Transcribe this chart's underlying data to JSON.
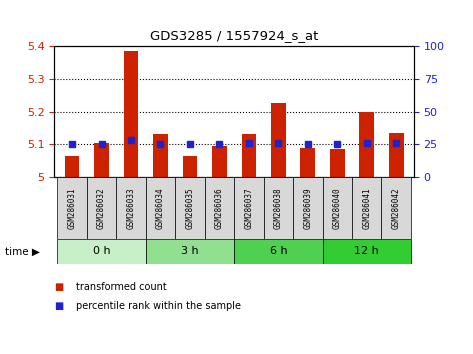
{
  "title": "GDS3285 / 1557924_s_at",
  "samples": [
    "GSM286031",
    "GSM286032",
    "GSM286033",
    "GSM286034",
    "GSM286035",
    "GSM286036",
    "GSM286037",
    "GSM286038",
    "GSM286039",
    "GSM286040",
    "GSM286041",
    "GSM286042"
  ],
  "transformed_count": [
    5.065,
    5.105,
    5.385,
    5.13,
    5.065,
    5.095,
    5.13,
    5.225,
    5.09,
    5.085,
    5.2,
    5.135
  ],
  "percentile_rank": [
    25,
    25,
    28,
    25,
    25,
    25,
    26,
    26,
    25,
    25,
    26,
    26
  ],
  "groups": [
    {
      "label": "0 h",
      "start": 0,
      "end": 3,
      "color": "#c8f0c8"
    },
    {
      "label": "3 h",
      "start": 3,
      "end": 6,
      "color": "#90e090"
    },
    {
      "label": "6 h",
      "start": 6,
      "end": 9,
      "color": "#50d050"
    },
    {
      "label": "12 h",
      "start": 9,
      "end": 12,
      "color": "#32cd32"
    }
  ],
  "ylim_left": [
    5.0,
    5.4
  ],
  "ylim_right": [
    0,
    100
  ],
  "yticks_left": [
    5.0,
    5.1,
    5.2,
    5.3,
    5.4
  ],
  "yticks_left_labels": [
    "5",
    "5.1",
    "5.2",
    "5.3",
    "5.4"
  ],
  "yticks_right": [
    0,
    25,
    50,
    75,
    100
  ],
  "bar_color": "#cc2200",
  "dot_color": "#2222cc",
  "bar_width": 0.5,
  "grid_color": "#000000",
  "left_axis_color": "#cc2200",
  "right_axis_color": "#2222cc",
  "legend_labels": [
    "transformed count",
    "percentile rank within the sample"
  ],
  "legend_colors": [
    "#cc2200",
    "#2222cc"
  ],
  "time_label": "time"
}
